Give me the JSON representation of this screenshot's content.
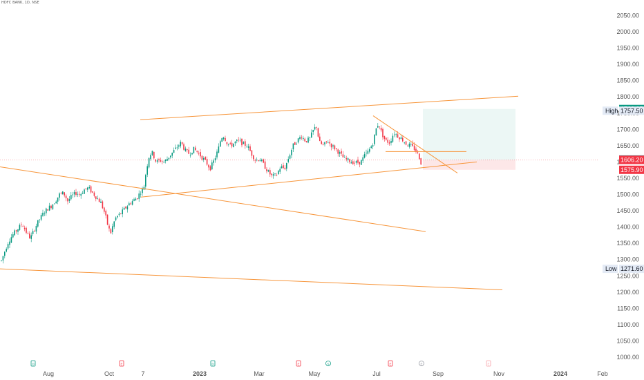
{
  "header": {
    "symbol": "HDFC BANK, 1D, NSE"
  },
  "chart_data": {
    "type": "candlestick",
    "ylim": [
      1000,
      2050
    ],
    "y_ticks": [
      1000,
      1050,
      1100,
      1150,
      1200,
      1250,
      1300,
      1350,
      1400,
      1450,
      1500,
      1550,
      1600,
      1650,
      1700,
      1750,
      1800,
      1850,
      1900,
      1950,
      2000,
      2050
    ],
    "x_ticks": [
      {
        "label": "Aug",
        "bold": false
      },
      {
        "label": "Oct",
        "bold": false
      },
      {
        "label": "7",
        "bold": false
      },
      {
        "label": "2023",
        "bold": true
      },
      {
        "label": "Mar",
        "bold": false
      },
      {
        "label": "May",
        "bold": false
      },
      {
        "label": "Jul",
        "bold": false
      },
      {
        "label": "Sep",
        "bold": false
      },
      {
        "label": "Nov",
        "bold": false
      },
      {
        "label": "2024",
        "bold": true
      },
      {
        "label": "Feb",
        "bold": false
      }
    ],
    "price_tags": [
      {
        "label": "",
        "value": "1762.85",
        "price": 1762.85,
        "color": "#089981"
      },
      {
        "label": "High",
        "value": "1757.50",
        "price": 1757.5,
        "color": "#e3eaf5"
      },
      {
        "label": "",
        "value": "1607.60",
        "price": 1607.6,
        "color": "#5d606b"
      },
      {
        "label": "",
        "value": "1606.20",
        "price": 1606.2,
        "color": "#f23645"
      },
      {
        "label": "",
        "value": "1575.90",
        "price": 1575.9,
        "color": "#f23645"
      },
      {
        "label": "Low",
        "value": "1271.60",
        "price": 1271.6,
        "color": "#e3eaf5"
      }
    ],
    "candle_anchors": [
      [
        0,
        1285
      ],
      [
        6,
        1320
      ],
      [
        12,
        1355
      ],
      [
        18,
        1375
      ],
      [
        24,
        1390
      ],
      [
        32,
        1410
      ],
      [
        38,
        1385
      ],
      [
        44,
        1365
      ],
      [
        50,
        1395
      ],
      [
        56,
        1420
      ],
      [
        62,
        1440
      ],
      [
        68,
        1455
      ],
      [
        74,
        1465
      ],
      [
        80,
        1480
      ],
      [
        86,
        1500
      ],
      [
        92,
        1505
      ],
      [
        98,
        1480
      ],
      [
        104,
        1495
      ],
      [
        110,
        1505
      ],
      [
        116,
        1500
      ],
      [
        122,
        1515
      ],
      [
        128,
        1520
      ],
      [
        134,
        1505
      ],
      [
        140,
        1490
      ],
      [
        146,
        1475
      ],
      [
        152,
        1440
      ],
      [
        156,
        1405
      ],
      [
        160,
        1380
      ],
      [
        164,
        1410
      ],
      [
        168,
        1430
      ],
      [
        174,
        1440
      ],
      [
        180,
        1455
      ],
      [
        186,
        1470
      ],
      [
        192,
        1480
      ],
      [
        198,
        1490
      ],
      [
        204,
        1510
      ],
      [
        208,
        1520
      ],
      [
        212,
        1580
      ],
      [
        216,
        1620
      ],
      [
        220,
        1630
      ],
      [
        226,
        1600
      ],
      [
        232,
        1605
      ],
      [
        238,
        1600
      ],
      [
        244,
        1615
      ],
      [
        250,
        1630
      ],
      [
        256,
        1645
      ],
      [
        262,
        1660
      ],
      [
        268,
        1635
      ],
      [
        274,
        1625
      ],
      [
        280,
        1640
      ],
      [
        286,
        1630
      ],
      [
        292,
        1615
      ],
      [
        298,
        1600
      ],
      [
        304,
        1580
      ],
      [
        310,
        1605
      ],
      [
        316,
        1640
      ],
      [
        320,
        1675
      ],
      [
        324,
        1680
      ],
      [
        328,
        1660
      ],
      [
        334,
        1650
      ],
      [
        340,
        1660
      ],
      [
        346,
        1665
      ],
      [
        352,
        1655
      ],
      [
        358,
        1650
      ],
      [
        364,
        1625
      ],
      [
        370,
        1605
      ],
      [
        376,
        1610
      ],
      [
        382,
        1590
      ],
      [
        388,
        1570
      ],
      [
        394,
        1555
      ],
      [
        400,
        1560
      ],
      [
        406,
        1585
      ],
      [
        412,
        1580
      ],
      [
        418,
        1615
      ],
      [
        424,
        1650
      ],
      [
        430,
        1665
      ],
      [
        436,
        1680
      ],
      [
        442,
        1665
      ],
      [
        448,
        1670
      ],
      [
        454,
        1700
      ],
      [
        458,
        1710
      ],
      [
        462,
        1660
      ],
      [
        468,
        1650
      ],
      [
        474,
        1665
      ],
      [
        480,
        1650
      ],
      [
        486,
        1640
      ],
      [
        492,
        1625
      ],
      [
        498,
        1610
      ],
      [
        504,
        1605
      ],
      [
        510,
        1600
      ],
      [
        516,
        1598
      ],
      [
        522,
        1600
      ],
      [
        528,
        1620
      ],
      [
        534,
        1635
      ],
      [
        540,
        1660
      ],
      [
        544,
        1700
      ],
      [
        548,
        1720
      ],
      [
        552,
        1690
      ],
      [
        558,
        1665
      ],
      [
        564,
        1660
      ],
      [
        570,
        1690
      ],
      [
        576,
        1680
      ],
      [
        582,
        1670
      ],
      [
        588,
        1655
      ],
      [
        594,
        1650
      ],
      [
        600,
        1640
      ],
      [
        606,
        1620
      ],
      [
        609,
        1597
      ],
      [
        612,
        1606
      ]
    ],
    "drawings": [
      {
        "type": "trendline",
        "from": [
          203,
          1730
        ],
        "to": [
          750,
          1802
        ]
      },
      {
        "type": "trendline",
        "from": [
          204,
          1492
        ],
        "to": [
          690,
          1600
        ]
      },
      {
        "type": "trendline",
        "from": [
          0,
          1585
        ],
        "to": [
          616,
          1386
        ]
      },
      {
        "type": "trendline",
        "from": [
          0,
          1271.6
        ],
        "to": [
          727,
          1207
        ]
      },
      {
        "type": "trendline",
        "from": [
          540,
          1742
        ],
        "to": [
          662,
          1566
        ]
      },
      {
        "type": "hline",
        "from": [
          558,
          1632
        ],
        "to": [
          675,
          1632
        ]
      },
      {
        "type": "target-zone",
        "x": [
          612,
          746
        ],
        "price": [
          1606.2,
          1762.85
        ]
      },
      {
        "type": "stop-zone",
        "x": [
          612,
          746
        ],
        "price": [
          1575.9,
          1606.2
        ]
      }
    ],
    "current_price_line": 1606.2,
    "event_markers": [
      {
        "kind": "dividend",
        "x": 48,
        "letter": "D"
      },
      {
        "kind": "earnings",
        "x": 176,
        "letter": "E"
      },
      {
        "kind": "dividend",
        "x": 308,
        "letter": "D"
      },
      {
        "kind": "earnings",
        "x": 432,
        "letter": "E"
      },
      {
        "kind": "split",
        "x": 475,
        "letter": "S"
      },
      {
        "kind": "earnings",
        "x": 565,
        "letter": "E"
      },
      {
        "kind": "future",
        "x": 610,
        "letter": "E"
      },
      {
        "kind": "future-earnings",
        "x": 707,
        "letter": "E"
      }
    ],
    "colors": {
      "up": "#089981",
      "down": "#f23645",
      "drawing": "#f7953a",
      "text": "#555555",
      "bold": "#131722"
    }
  }
}
